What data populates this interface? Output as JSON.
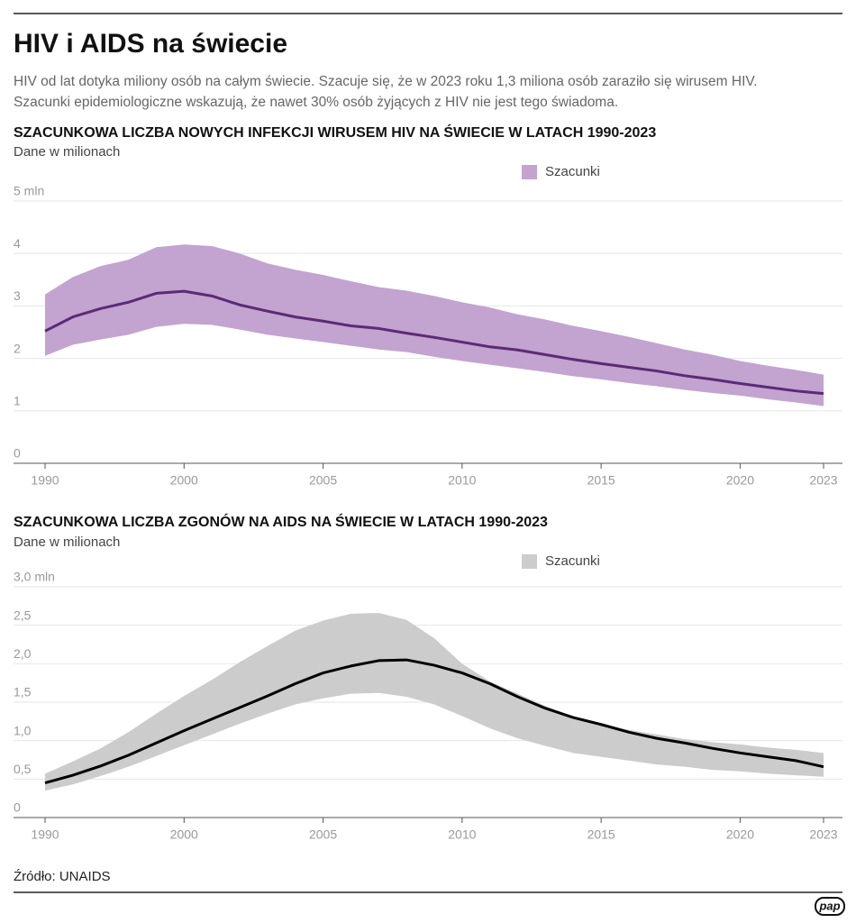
{
  "header": {
    "title": "HIV i AIDS na świecie",
    "description": [
      "HIV od lat dotyka miliony osób na całym świecie. Szacuje się, że w 2023 roku 1,3 miliona osób zaraziło się wirusem HIV.",
      "Szacunki epidemiologiczne wskazują, że nawet 30% osób żyjących z HIV nie jest tego świadoma."
    ]
  },
  "chart_data": [
    {
      "type": "band-line",
      "title": "SZACUNKOWA LICZBA NOWYCH INFEKCJI WIRUSEM HIV NA ŚWIECIE W LATACH 1990-2023",
      "subtitle": "Dane w milionach",
      "categories": [
        "1990",
        null,
        null,
        null,
        null,
        "2000",
        null,
        null,
        null,
        null,
        "2005",
        null,
        null,
        null,
        null,
        "2010",
        null,
        null,
        null,
        null,
        "2015",
        null,
        null,
        null,
        null,
        "2020",
        null,
        null,
        "2023"
      ],
      "series": [
        {
          "name": "Szacunki",
          "color": "#c3a3cf",
          "low": [
            2.05,
            2.26,
            2.36,
            2.45,
            2.6,
            2.66,
            2.64,
            2.55,
            2.45,
            2.38,
            2.31,
            2.24,
            2.17,
            2.12,
            2.03,
            1.95,
            1.88,
            1.81,
            1.74,
            1.66,
            1.6,
            1.53,
            1.47,
            1.4,
            1.34,
            1.29,
            1.22,
            1.16,
            1.09
          ],
          "high": [
            3.22,
            3.55,
            3.76,
            3.88,
            4.12,
            4.17,
            4.14,
            4.0,
            3.81,
            3.69,
            3.59,
            3.47,
            3.36,
            3.29,
            3.19,
            3.07,
            2.97,
            2.84,
            2.74,
            2.62,
            2.52,
            2.41,
            2.29,
            2.17,
            2.07,
            1.95,
            1.86,
            1.78,
            1.69
          ]
        },
        {
          "color": "#5b2a77",
          "values": [
            2.52,
            2.79,
            2.95,
            3.07,
            3.24,
            3.28,
            3.19,
            3.02,
            2.9,
            2.79,
            2.71,
            2.62,
            2.57,
            2.48,
            2.4,
            2.31,
            2.22,
            2.16,
            2.07,
            1.98,
            1.9,
            1.83,
            1.76,
            1.67,
            1.6,
            1.52,
            1.45,
            1.38,
            1.33
          ]
        }
      ],
      "ylim": [
        0,
        5
      ],
      "yticks": [
        0,
        1,
        2,
        3,
        4,
        {
          "value": 5,
          "label": "5 mln"
        }
      ],
      "grid": true
    },
    {
      "type": "band-line",
      "title": "SZACUNKOWA LICZBA ZGONÓW NA AIDS NA ŚWIECIE W LATACH 1990-2023",
      "subtitle": "Dane w milionach",
      "categories": [
        "1990",
        null,
        null,
        null,
        null,
        "2000",
        null,
        null,
        null,
        null,
        "2005",
        null,
        null,
        null,
        null,
        "2010",
        null,
        null,
        null,
        null,
        "2015",
        null,
        null,
        null,
        null,
        "2020",
        null,
        null,
        "2023"
      ],
      "series": [
        {
          "name": "Szacunki",
          "color": "#cccccc",
          "low": [
            0.35,
            0.43,
            0.54,
            0.66,
            0.8,
            0.94,
            1.08,
            1.22,
            1.35,
            1.47,
            1.55,
            1.61,
            1.62,
            1.57,
            1.47,
            1.32,
            1.16,
            1.03,
            0.93,
            0.84,
            0.79,
            0.74,
            0.69,
            0.66,
            0.62,
            0.6,
            0.57,
            0.55,
            0.53
          ],
          "high": [
            0.57,
            0.73,
            0.9,
            1.11,
            1.35,
            1.58,
            1.79,
            2.02,
            2.23,
            2.43,
            2.56,
            2.65,
            2.66,
            2.57,
            2.33,
            2.0,
            1.77,
            1.61,
            1.45,
            1.31,
            1.22,
            1.14,
            1.08,
            1.02,
            0.98,
            0.95,
            0.91,
            0.88,
            0.84
          ]
        },
        {
          "color": "#000000",
          "values": [
            0.45,
            0.55,
            0.67,
            0.81,
            0.97,
            1.13,
            1.28,
            1.43,
            1.58,
            1.74,
            1.88,
            1.97,
            2.04,
            2.05,
            1.98,
            1.88,
            1.74,
            1.57,
            1.42,
            1.3,
            1.21,
            1.11,
            1.03,
            0.97,
            0.9,
            0.84,
            0.79,
            0.74,
            0.66
          ]
        }
      ],
      "ylim": [
        0,
        3
      ],
      "yticks": [
        0,
        {
          "value": 0.5,
          "label": "0,5"
        },
        {
          "value": 1,
          "label": "1,0"
        },
        {
          "value": 1.5,
          "label": "1,5"
        },
        {
          "value": 2,
          "label": "2,0"
        },
        {
          "value": 2.5,
          "label": "2,5"
        },
        {
          "value": 3,
          "label": "3,0 mln"
        }
      ],
      "grid": true
    }
  ],
  "footer": {
    "source": "Źródło: UNAIDS",
    "logo": "pap"
  }
}
